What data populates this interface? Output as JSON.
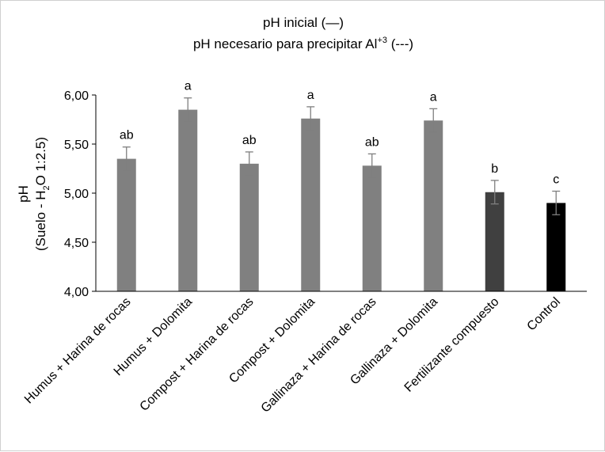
{
  "chart_data": {
    "type": "bar",
    "title_line1": "pH inicial (—)",
    "title_line2_prefix": "pH necesario para precipitar Al",
    "title_line2_sup": "+3",
    "title_line2_suffix": " (---)",
    "ylabel_line1": "pH",
    "ylabel_line2_prefix": "(Suelo - H",
    "ylabel_line2_sub": "2",
    "ylabel_line2_suffix": "O 1:2.5)",
    "ylim": [
      4.0,
      6.0
    ],
    "yticks": [
      4.0,
      4.5,
      5.0,
      5.5,
      6.0
    ],
    "ytick_labels": [
      "4,00",
      "4,50",
      "5,00",
      "5,50",
      "6,00"
    ],
    "grid": false,
    "categories": [
      "Humus + Harina de rocas",
      "Humus + Dolomita",
      "Compost + Harina de rocas",
      "Compost + Dolomita",
      "Gallinaza + Harina de rocas",
      "Gallinaza + Dolomita",
      "Fertilizante compuesto",
      "Control"
    ],
    "values": [
      5.35,
      5.85,
      5.3,
      5.76,
      5.28,
      5.74,
      5.01,
      4.9
    ],
    "errors": [
      0.12,
      0.12,
      0.12,
      0.12,
      0.12,
      0.12,
      0.12,
      0.12
    ],
    "letters": [
      "ab",
      "a",
      "ab",
      "a",
      "ab",
      "a",
      "b",
      "c"
    ],
    "colors": [
      "#808080",
      "#808080",
      "#808080",
      "#808080",
      "#808080",
      "#808080",
      "#404040",
      "#000000"
    ],
    "error_color": "#7f7f7f"
  }
}
